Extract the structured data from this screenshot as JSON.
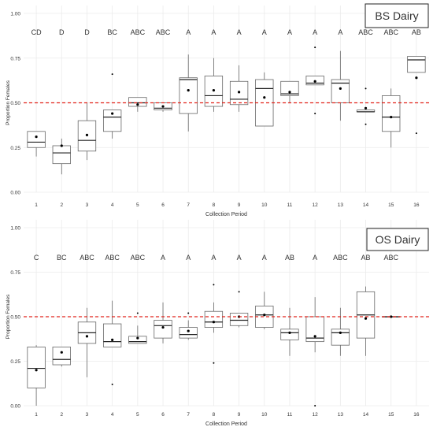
{
  "chart_data": [
    {
      "type": "boxplot",
      "panel_label": "BS Dairy",
      "xlabel": "Collection Period",
      "ylabel": "Proportion Females",
      "ylim": [
        0,
        1
      ],
      "yticks": [
        0.0,
        0.25,
        0.5,
        0.75,
        1.0
      ],
      "ytick_labels": [
        "0.00",
        "0.25",
        "0.50",
        "0.75",
        "1.00"
      ],
      "reference_line": 0.5,
      "grid": true,
      "categories": [
        "1",
        "2",
        "3",
        "4",
        "5",
        "6",
        "7",
        "8",
        "9",
        "10",
        "11",
        "12",
        "13",
        "14",
        "15",
        "16"
      ],
      "letters": [
        "CD",
        "D",
        "D",
        "BC",
        "ABC",
        "ABC",
        "A",
        "A",
        "A",
        "A",
        "A",
        "A",
        "A",
        "ABC",
        "ABC",
        "AB"
      ],
      "boxes": [
        {
          "min": 0.2,
          "q1": 0.25,
          "median": 0.28,
          "q3": 0.34,
          "max": 0.34,
          "mean": 0.31,
          "outliers": []
        },
        {
          "min": 0.1,
          "q1": 0.16,
          "median": 0.22,
          "q3": 0.26,
          "max": 0.3,
          "mean": 0.26,
          "outliers": []
        },
        {
          "min": 0.18,
          "q1": 0.23,
          "median": 0.29,
          "q3": 0.4,
          "max": 0.5,
          "mean": 0.32,
          "outliers": []
        },
        {
          "min": 0.3,
          "q1": 0.34,
          "median": 0.42,
          "q3": 0.46,
          "max": 0.46,
          "mean": 0.44,
          "outliers": [
            0.66
          ]
        },
        {
          "min": 0.45,
          "q1": 0.48,
          "median": 0.5,
          "q3": 0.53,
          "max": 0.53,
          "mean": 0.49,
          "outliers": []
        },
        {
          "min": 0.45,
          "q1": 0.46,
          "median": 0.47,
          "q3": 0.5,
          "max": 0.5,
          "mean": 0.48,
          "outliers": []
        },
        {
          "min": 0.34,
          "q1": 0.44,
          "median": 0.63,
          "q3": 0.64,
          "max": 0.77,
          "mean": 0.57,
          "outliers": []
        },
        {
          "min": 0.45,
          "q1": 0.48,
          "median": 0.54,
          "q3": 0.65,
          "max": 0.75,
          "mean": 0.57,
          "outliers": []
        },
        {
          "min": 0.45,
          "q1": 0.49,
          "median": 0.52,
          "q3": 0.62,
          "max": 0.71,
          "mean": 0.56,
          "outliers": []
        },
        {
          "min": 0.37,
          "q1": 0.37,
          "median": 0.58,
          "q3": 0.63,
          "max": 0.67,
          "mean": 0.53,
          "outliers": []
        },
        {
          "min": 0.5,
          "q1": 0.54,
          "median": 0.55,
          "q3": 0.62,
          "max": 0.62,
          "mean": 0.56,
          "outliers": []
        },
        {
          "min": 0.6,
          "q1": 0.6,
          "median": 0.61,
          "q3": 0.65,
          "max": 0.65,
          "mean": 0.62,
          "outliers": [
            0.81,
            0.44
          ]
        },
        {
          "min": 0.4,
          "q1": 0.5,
          "median": 0.61,
          "q3": 0.63,
          "max": 0.79,
          "mean": 0.58,
          "outliers": []
        },
        {
          "min": 0.45,
          "q1": 0.45,
          "median": 0.45,
          "q3": 0.46,
          "max": 0.46,
          "mean": 0.47,
          "outliers": [
            0.58,
            0.38
          ]
        },
        {
          "min": 0.25,
          "q1": 0.34,
          "median": 0.42,
          "q3": 0.54,
          "max": 0.58,
          "mean": 0.42,
          "outliers": []
        },
        {
          "min": 0.67,
          "q1": 0.67,
          "median": 0.74,
          "q3": 0.76,
          "max": 0.76,
          "mean": 0.64,
          "outliers": [
            0.33
          ]
        }
      ]
    },
    {
      "type": "boxplot",
      "panel_label": "OS Dairy",
      "xlabel": "Collection Period",
      "ylabel": "Proportion Females",
      "ylim": [
        0,
        1
      ],
      "yticks": [
        0.0,
        0.25,
        0.5,
        0.75,
        1.0
      ],
      "ytick_labels": [
        "0.00",
        "0.25",
        "0.50",
        "0.75",
        "1.00"
      ],
      "reference_line": 0.5,
      "grid": true,
      "categories": [
        "1",
        "2",
        "3",
        "4",
        "5",
        "6",
        "7",
        "8",
        "9",
        "10",
        "11",
        "12",
        "13",
        "14",
        "15",
        "16"
      ],
      "letters": [
        "C",
        "BC",
        "ABC",
        "ABC",
        "ABC",
        "A",
        "A",
        "A",
        "A",
        "A",
        "AB",
        "A",
        "ABC",
        "AB",
        "ABC",
        ""
      ],
      "boxes": [
        {
          "min": 0.0,
          "q1": 0.1,
          "median": 0.21,
          "q3": 0.33,
          "max": 0.34,
          "mean": 0.2,
          "outliers": []
        },
        {
          "min": 0.22,
          "q1": 0.23,
          "median": 0.26,
          "q3": 0.33,
          "max": 0.33,
          "mean": 0.3,
          "outliers": []
        },
        {
          "min": 0.16,
          "q1": 0.35,
          "median": 0.41,
          "q3": 0.47,
          "max": 0.55,
          "mean": 0.39,
          "outliers": []
        },
        {
          "min": 0.33,
          "q1": 0.33,
          "median": 0.36,
          "q3": 0.46,
          "max": 0.59,
          "mean": 0.37,
          "outliers": [
            0.12
          ]
        },
        {
          "min": 0.35,
          "q1": 0.35,
          "median": 0.36,
          "q3": 0.39,
          "max": 0.45,
          "mean": 0.38,
          "outliers": [
            0.52
          ]
        },
        {
          "min": 0.35,
          "q1": 0.38,
          "median": 0.45,
          "q3": 0.48,
          "max": 0.58,
          "mean": 0.44,
          "outliers": []
        },
        {
          "min": 0.37,
          "q1": 0.38,
          "median": 0.4,
          "q3": 0.44,
          "max": 0.48,
          "mean": 0.42,
          "outliers": [
            0.52
          ]
        },
        {
          "min": 0.41,
          "q1": 0.44,
          "median": 0.47,
          "q3": 0.53,
          "max": 0.58,
          "mean": 0.47,
          "outliers": [
            0.68,
            0.24
          ]
        },
        {
          "min": 0.44,
          "q1": 0.45,
          "median": 0.48,
          "q3": 0.52,
          "max": 0.52,
          "mean": 0.5,
          "outliers": [
            0.64
          ]
        },
        {
          "min": 0.43,
          "q1": 0.44,
          "median": 0.51,
          "q3": 0.56,
          "max": 0.64,
          "mean": 0.51,
          "outliers": []
        },
        {
          "min": 0.28,
          "q1": 0.37,
          "median": 0.41,
          "q3": 0.43,
          "max": 0.55,
          "mean": 0.41,
          "outliers": []
        },
        {
          "min": 0.3,
          "q1": 0.36,
          "median": 0.38,
          "q3": 0.5,
          "max": 0.61,
          "mean": 0.39,
          "outliers": [
            0.0
          ]
        },
        {
          "min": 0.28,
          "q1": 0.34,
          "median": 0.41,
          "q3": 0.43,
          "max": 0.55,
          "mean": 0.41,
          "outliers": []
        },
        {
          "min": 0.28,
          "q1": 0.38,
          "median": 0.51,
          "q3": 0.64,
          "max": 0.67,
          "mean": 0.49,
          "outliers": []
        },
        {
          "min": 0.5,
          "q1": 0.5,
          "median": 0.5,
          "q3": 0.5,
          "max": 0.5,
          "mean": 0.5,
          "outliers": []
        },
        null
      ]
    }
  ],
  "colors": {
    "reference_line": "#e2231a",
    "box_stroke": "#666666",
    "box_fill": "#ffffff",
    "median": "#222222",
    "mean_point": "#000000",
    "grid": "#ebebeb",
    "text": "#333333"
  }
}
